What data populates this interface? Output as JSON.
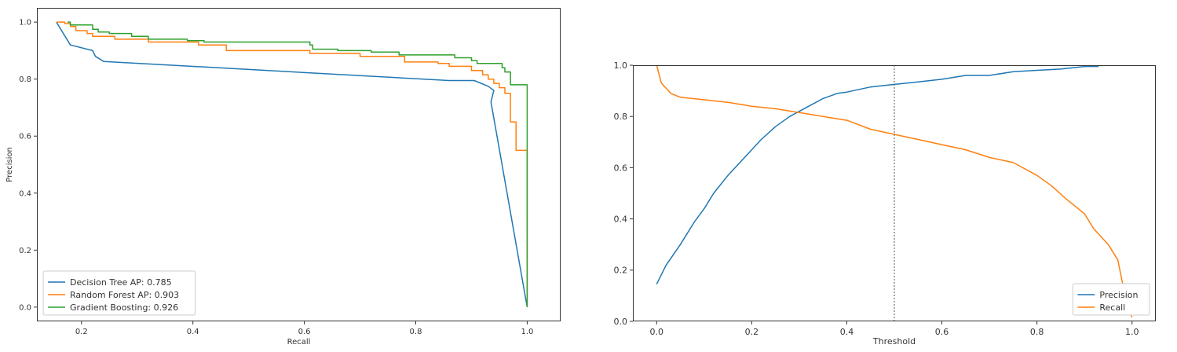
{
  "chart_data": [
    {
      "type": "line",
      "xlabel": "Recall",
      "ylabel": "Precision",
      "xlim": [
        0.12,
        1.06
      ],
      "ylim": [
        -0.05,
        1.05
      ],
      "xticks": [
        0.2,
        0.4,
        0.6,
        0.8,
        1.0
      ],
      "yticks": [
        0.0,
        0.2,
        0.4,
        0.6,
        0.8,
        1.0
      ],
      "xtick_labels": [
        "0.2",
        "0.4",
        "0.6",
        "0.8",
        "1.0"
      ],
      "ytick_labels": [
        "0.0",
        "0.2",
        "0.4",
        "0.6",
        "0.8",
        "1.0"
      ],
      "grid": false,
      "legend_position": "bottom-left",
      "series": [
        {
          "name": "Decision Tree AP: 0.785",
          "color": "#1f77b4",
          "step": false,
          "points": [
            [
              0.155,
              1.0
            ],
            [
              0.18,
              0.92
            ],
            [
              0.22,
              0.9
            ],
            [
              0.225,
              0.88
            ],
            [
              0.24,
              0.862
            ],
            [
              0.86,
              0.795
            ],
            [
              0.905,
              0.795
            ],
            [
              0.93,
              0.775
            ],
            [
              0.94,
              0.76
            ],
            [
              0.935,
              0.72
            ],
            [
              1.0,
              0.0
            ]
          ]
        },
        {
          "name": "Random Forest AP: 0.903",
          "color": "#ff7f0e",
          "step": true,
          "points": [
            [
              0.155,
              1.0
            ],
            [
              0.17,
              0.995
            ],
            [
              0.18,
              0.985
            ],
            [
              0.19,
              0.97
            ],
            [
              0.21,
              0.96
            ],
            [
              0.22,
              0.95
            ],
            [
              0.26,
              0.94
            ],
            [
              0.32,
              0.93
            ],
            [
              0.41,
              0.92
            ],
            [
              0.46,
              0.9
            ],
            [
              0.61,
              0.89
            ],
            [
              0.7,
              0.88
            ],
            [
              0.78,
              0.86
            ],
            [
              0.84,
              0.855
            ],
            [
              0.86,
              0.845
            ],
            [
              0.9,
              0.83
            ],
            [
              0.92,
              0.815
            ],
            [
              0.93,
              0.8
            ],
            [
              0.94,
              0.785
            ],
            [
              0.95,
              0.77
            ],
            [
              0.96,
              0.75
            ],
            [
              0.97,
              0.65
            ],
            [
              0.98,
              0.64
            ],
            [
              0.98,
              0.55
            ],
            [
              1.0,
              0.545
            ],
            [
              1.0,
              0.0
            ]
          ]
        },
        {
          "name": "Gradient Boosting: 0.926",
          "color": "#2ca02c",
          "step": true,
          "points": [
            [
              0.175,
              1.0
            ],
            [
              0.18,
              0.99
            ],
            [
              0.22,
              0.975
            ],
            [
              0.23,
              0.965
            ],
            [
              0.25,
              0.96
            ],
            [
              0.29,
              0.95
            ],
            [
              0.32,
              0.94
            ],
            [
              0.39,
              0.935
            ],
            [
              0.42,
              0.93
            ],
            [
              0.61,
              0.92
            ],
            [
              0.615,
              0.905
            ],
            [
              0.66,
              0.9
            ],
            [
              0.72,
              0.895
            ],
            [
              0.77,
              0.885
            ],
            [
              0.87,
              0.875
            ],
            [
              0.9,
              0.865
            ],
            [
              0.91,
              0.855
            ],
            [
              0.955,
              0.84
            ],
            [
              0.96,
              0.825
            ],
            [
              0.97,
              0.8
            ],
            [
              0.97,
              0.78
            ],
            [
              1.0,
              0.775
            ],
            [
              1.0,
              0.0
            ]
          ]
        }
      ]
    },
    {
      "type": "line",
      "xlabel": "Threshold",
      "ylabel": "",
      "xlim": [
        -0.05,
        1.05
      ],
      "ylim": [
        0.0,
        1.0
      ],
      "xticks": [
        0.0,
        0.2,
        0.4,
        0.6,
        0.8,
        1.0
      ],
      "yticks": [
        0.0,
        0.2,
        0.4,
        0.6,
        0.8,
        1.0
      ],
      "xtick_labels": [
        "0.0",
        "0.2",
        "0.4",
        "0.6",
        "0.8",
        "1.0"
      ],
      "ytick_labels": [
        "0.0",
        "0.2",
        "0.4",
        "0.6",
        "0.8",
        "1.0"
      ],
      "grid": false,
      "legend_position": "bottom-right",
      "vline": {
        "x": 0.5,
        "style": "dotted",
        "color": "#555555"
      },
      "series": [
        {
          "name": "Precision",
          "color": "#1f77b4",
          "step": false,
          "points": [
            [
              0.0,
              0.145
            ],
            [
              0.02,
              0.22
            ],
            [
              0.05,
              0.3
            ],
            [
              0.08,
              0.39
            ],
            [
              0.1,
              0.44
            ],
            [
              0.12,
              0.5
            ],
            [
              0.15,
              0.57
            ],
            [
              0.18,
              0.63
            ],
            [
              0.2,
              0.67
            ],
            [
              0.22,
              0.71
            ],
            [
              0.25,
              0.76
            ],
            [
              0.28,
              0.8
            ],
            [
              0.3,
              0.82
            ],
            [
              0.32,
              0.84
            ],
            [
              0.35,
              0.87
            ],
            [
              0.38,
              0.89
            ],
            [
              0.4,
              0.895
            ],
            [
              0.45,
              0.915
            ],
            [
              0.5,
              0.925
            ],
            [
              0.55,
              0.935
            ],
            [
              0.6,
              0.945
            ],
            [
              0.65,
              0.96
            ],
            [
              0.7,
              0.96
            ],
            [
              0.75,
              0.975
            ],
            [
              0.8,
              0.98
            ],
            [
              0.85,
              0.985
            ],
            [
              0.9,
              0.995
            ],
            [
              0.93,
              0.995
            ]
          ]
        },
        {
          "name": "Recall",
          "color": "#ff7f0e",
          "step": false,
          "points": [
            [
              0.0,
              1.0
            ],
            [
              0.01,
              0.93
            ],
            [
              0.03,
              0.89
            ],
            [
              0.05,
              0.875
            ],
            [
              0.1,
              0.865
            ],
            [
              0.15,
              0.855
            ],
            [
              0.2,
              0.84
            ],
            [
              0.25,
              0.83
            ],
            [
              0.3,
              0.815
            ],
            [
              0.35,
              0.8
            ],
            [
              0.4,
              0.785
            ],
            [
              0.45,
              0.75
            ],
            [
              0.5,
              0.73
            ],
            [
              0.55,
              0.71
            ],
            [
              0.6,
              0.69
            ],
            [
              0.65,
              0.67
            ],
            [
              0.7,
              0.64
            ],
            [
              0.75,
              0.62
            ],
            [
              0.8,
              0.57
            ],
            [
              0.83,
              0.53
            ],
            [
              0.86,
              0.48
            ],
            [
              0.9,
              0.42
            ],
            [
              0.92,
              0.36
            ],
            [
              0.95,
              0.3
            ],
            [
              0.97,
              0.24
            ],
            [
              0.98,
              0.15
            ],
            [
              0.99,
              0.08
            ],
            [
              1.0,
              0.015
            ]
          ]
        }
      ]
    }
  ]
}
